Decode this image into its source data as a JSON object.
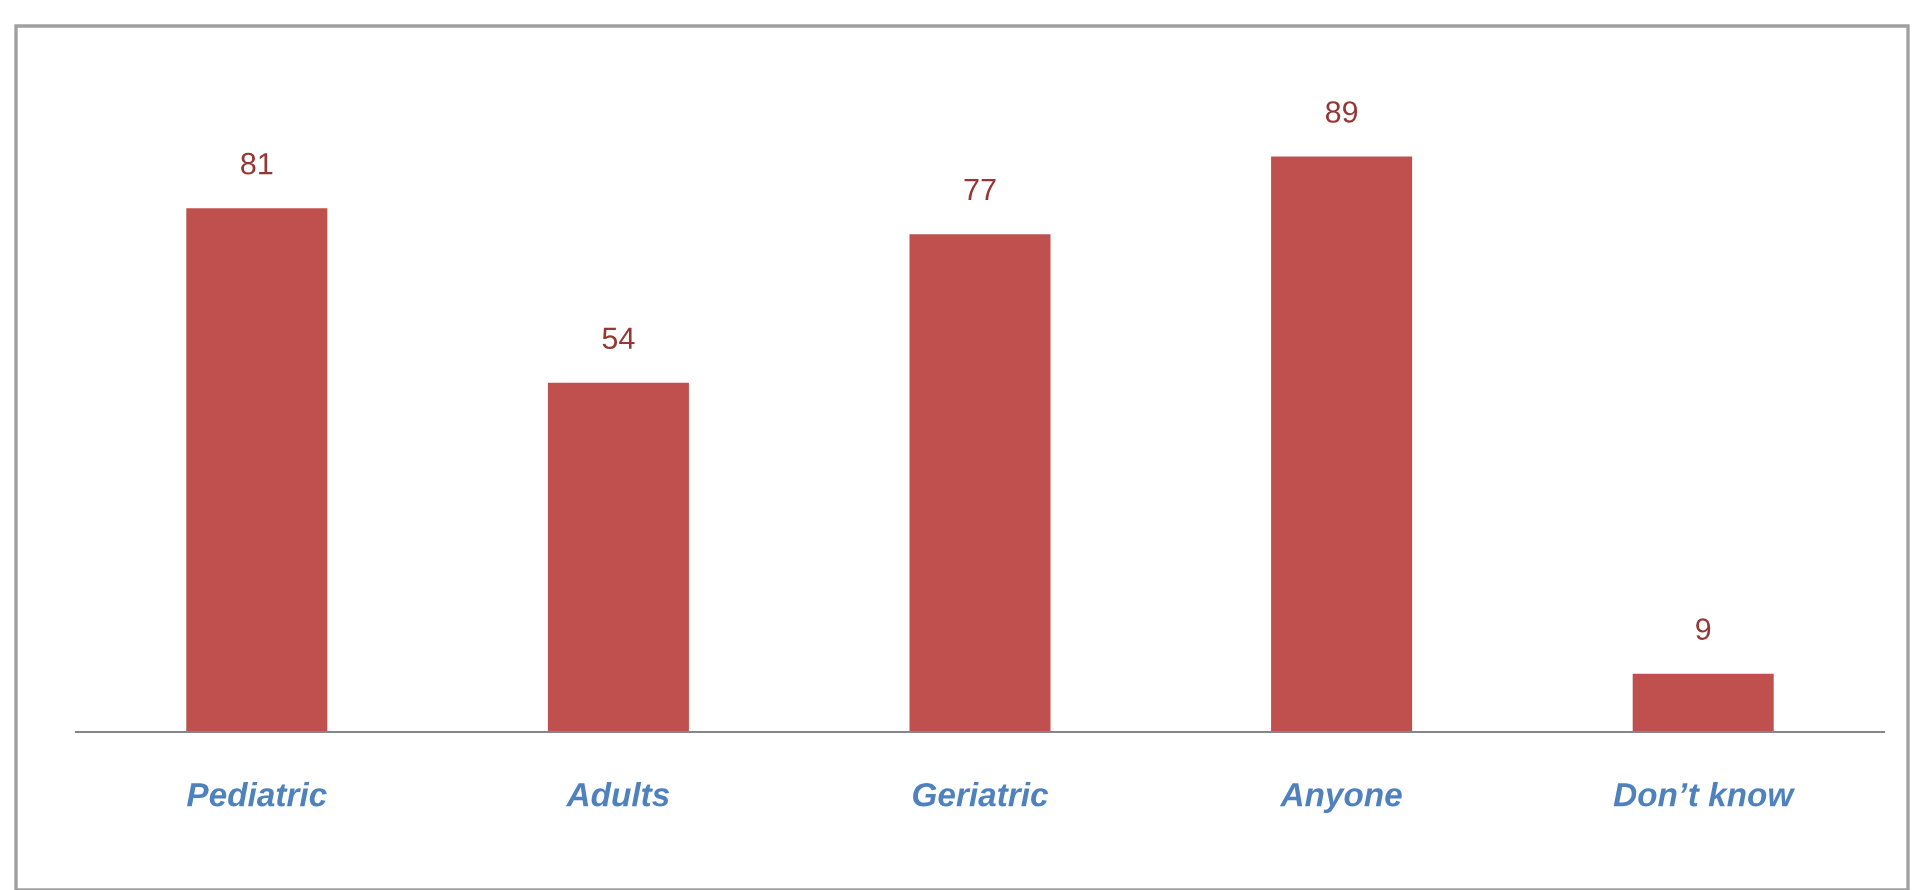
{
  "chart_data": {
    "type": "bar",
    "categories": [
      "Pediatric",
      "Adults",
      "Geriatric",
      "Anyone",
      "Don’t know"
    ],
    "values": [
      81,
      54,
      77,
      89,
      9
    ],
    "color": "#c0504d",
    "data_labels": true,
    "grid": false,
    "legend": false
  }
}
